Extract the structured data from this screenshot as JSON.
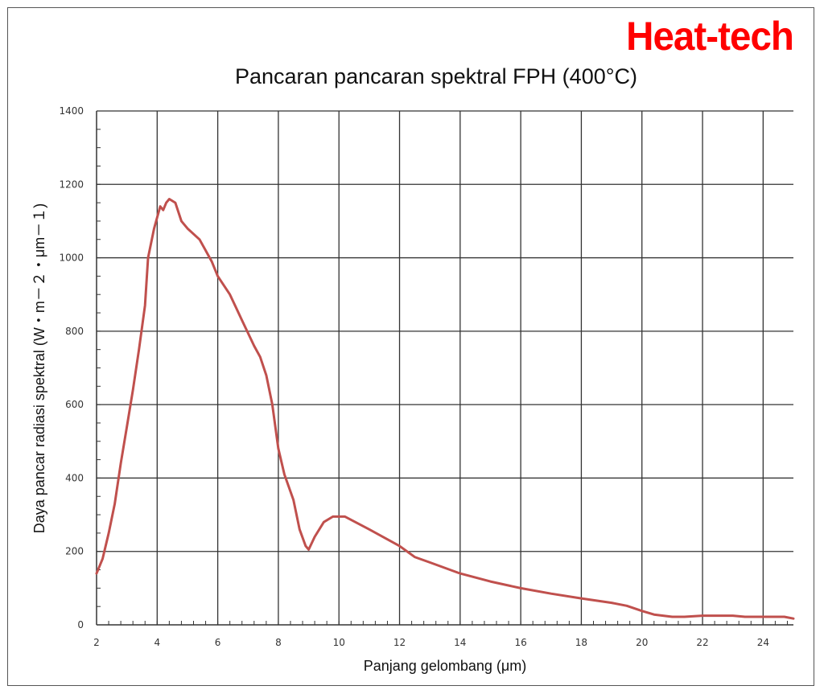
{
  "brand": {
    "logo_text": "Heat-tech",
    "color": "#ff0000"
  },
  "chart_data": {
    "type": "line",
    "title": "Pancaran pancaran spektral FPH (400°C)",
    "xlabel": "Panjang gelombang (μm)",
    "ylabel": "Daya pancar radiasi spektral (W・m－２・μm－１)",
    "xlim": [
      2,
      25
    ],
    "ylim": [
      0,
      1400
    ],
    "x_ticks": [
      2,
      4,
      6,
      8,
      10,
      12,
      14,
      16,
      18,
      20,
      22,
      24
    ],
    "y_ticks": [
      0,
      200,
      400,
      600,
      800,
      1000,
      1200,
      1400
    ],
    "grid": true,
    "legend": null,
    "line_color": "#c0504d",
    "series": [
      {
        "name": "FPH 400°C",
        "x": [
          2.0,
          2.2,
          2.4,
          2.6,
          2.8,
          3.0,
          3.2,
          3.4,
          3.6,
          3.7,
          3.9,
          4.0,
          4.1,
          4.2,
          4.3,
          4.4,
          4.6,
          4.8,
          5.0,
          5.4,
          5.8,
          6.0,
          6.4,
          6.8,
          7.2,
          7.4,
          7.6,
          7.8,
          8.0,
          8.2,
          8.5,
          8.7,
          8.9,
          9.0,
          9.2,
          9.5,
          9.8,
          10.2,
          11.0,
          12.0,
          12.5,
          13.0,
          14.0,
          15.0,
          16.0,
          17.0,
          18.0,
          19.0,
          19.5,
          20.0,
          20.4,
          21.0,
          21.4,
          22.0,
          23.0,
          23.4,
          24.0,
          24.7,
          25.0
        ],
        "values": [
          140,
          180,
          250,
          330,
          440,
          540,
          640,
          750,
          870,
          1000,
          1080,
          1110,
          1140,
          1130,
          1150,
          1160,
          1150,
          1100,
          1080,
          1050,
          990,
          950,
          900,
          830,
          760,
          730,
          680,
          600,
          480,
          410,
          340,
          260,
          215,
          205,
          240,
          280,
          295,
          295,
          260,
          215,
          185,
          170,
          140,
          118,
          100,
          85,
          72,
          60,
          52,
          38,
          28,
          22,
          22,
          25,
          25,
          22,
          22,
          22,
          17
        ]
      }
    ]
  }
}
